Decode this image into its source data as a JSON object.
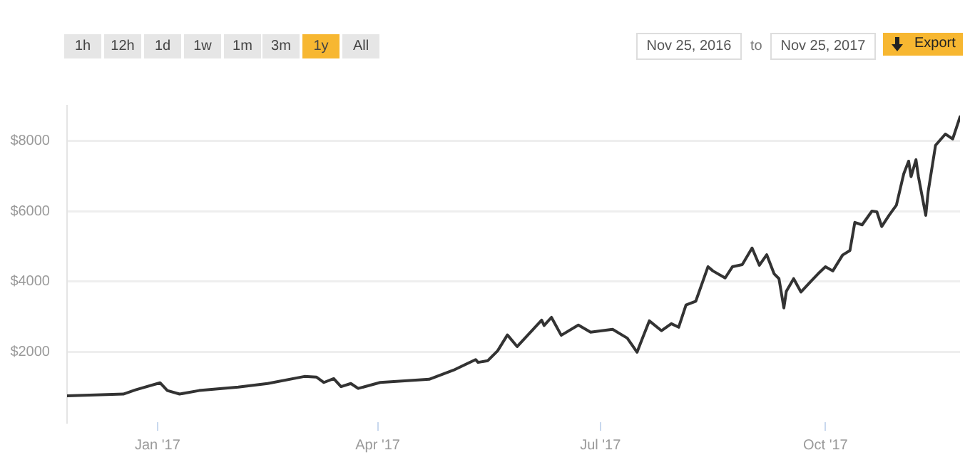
{
  "chart_data": {
    "type": "line",
    "annotations": [
      "1h",
      "12h",
      "1d",
      "1w",
      "1m",
      "3m",
      "1y",
      "All",
      "Nov 25, 2016",
      "to",
      "Nov 25, 2017",
      "Export"
    ],
    "x": [
      "2016-11-25",
      "2016-12-18",
      "2016-12-23",
      "2017-01-02",
      "2017-01-05",
      "2017-01-10",
      "2017-01-18",
      "2017-02-03",
      "2017-02-15",
      "2017-03-02",
      "2017-03-07",
      "2017-03-10",
      "2017-03-14",
      "2017-03-17",
      "2017-03-21",
      "2017-03-24",
      "2017-04-02",
      "2017-04-22",
      "2017-05-02",
      "2017-05-11",
      "2017-05-12",
      "2017-05-16",
      "2017-05-20",
      "2017-05-24",
      "2017-05-28",
      "2017-06-07",
      "2017-06-08",
      "2017-06-11",
      "2017-06-15",
      "2017-06-22",
      "2017-06-27",
      "2017-07-06",
      "2017-07-12",
      "2017-07-16",
      "2017-07-18",
      "2017-07-21",
      "2017-07-26",
      "2017-07-30",
      "2017-08-02",
      "2017-08-05",
      "2017-08-09",
      "2017-08-14",
      "2017-08-16",
      "2017-08-21",
      "2017-08-24",
      "2017-08-28",
      "2017-09-01",
      "2017-09-04",
      "2017-09-07",
      "2017-09-10",
      "2017-09-12",
      "2017-09-14",
      "2017-09-15",
      "2017-09-18",
      "2017-09-21",
      "2017-09-25",
      "2017-09-28",
      "2017-10-01",
      "2017-10-04",
      "2017-10-08",
      "2017-10-11",
      "2017-10-13",
      "2017-10-16",
      "2017-10-20",
      "2017-10-22",
      "2017-10-24",
      "2017-10-27",
      "2017-10-30",
      "2017-11-02",
      "2017-11-04",
      "2017-11-05",
      "2017-11-07",
      "2017-11-08",
      "2017-11-11",
      "2017-11-12",
      "2017-11-15",
      "2017-11-19",
      "2017-11-22",
      "2017-11-25"
    ],
    "series": [
      {
        "color": "#333333",
        "values": [
          750,
          800,
          920,
          1120,
          900,
          800,
          900,
          1000,
          1100,
          1300,
          1280,
          1130,
          1240,
          1010,
          1100,
          960,
          1130,
          1220,
          1480,
          1780,
          1700,
          1750,
          2030,
          2480,
          2150,
          2900,
          2750,
          2980,
          2470,
          2760,
          2560,
          2640,
          2390,
          1990,
          2350,
          2880,
          2600,
          2800,
          2700,
          3330,
          3440,
          4420,
          4300,
          4100,
          4420,
          4480,
          4950,
          4460,
          4760,
          4220,
          4080,
          3250,
          3720,
          4080,
          3700,
          4000,
          4220,
          4420,
          4300,
          4750,
          4880,
          5680,
          5610,
          6000,
          5980,
          5560,
          5880,
          6170,
          7060,
          7420,
          6980,
          7460,
          6980,
          5880,
          6560,
          7870,
          8190,
          8050,
          8680
        ]
      }
    ],
    "xlim": [
      "2016-11-25",
      "2017-11-25"
    ],
    "xticks": [
      {
        "value": "2017-01-01",
        "label": "Jan '17"
      },
      {
        "value": "2017-04-01",
        "label": "Apr '17"
      },
      {
        "value": "2017-07-01",
        "label": "Jul '17"
      },
      {
        "value": "2017-10-01",
        "label": "Oct '17"
      }
    ],
    "ylim": [
      0,
      9000
    ],
    "yticks": [
      {
        "value": 2000,
        "label": "$2000"
      },
      {
        "value": 4000,
        "label": "$4000"
      },
      {
        "value": 6000,
        "label": "$6000"
      },
      {
        "value": 8000,
        "label": "$8000"
      }
    ],
    "grid": "y",
    "legend": false,
    "marker": "none",
    "line_style": "solid"
  }
}
